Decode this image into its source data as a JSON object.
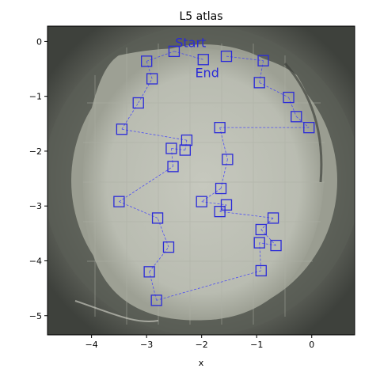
{
  "chart_data": {
    "type": "scatter",
    "title": "L5 atlas",
    "xlabel": "x",
    "ylabel": "",
    "xlim": [
      -4.8,
      0.78
    ],
    "ylim": [
      -5.35,
      0.28
    ],
    "xticks": [
      -4,
      -3,
      -2,
      -1,
      0
    ],
    "yticks": [
      0,
      -1,
      -2,
      -3,
      -4,
      -5
    ],
    "xtick_labels": [
      "−4",
      "−3",
      "−2",
      "−1",
      "0"
    ],
    "ytick_labels": [
      "0",
      "−1",
      "−2",
      "−3",
      "−4",
      "−5"
    ],
    "grid": false,
    "background": "grayscale microscope image of a circular well",
    "marker_color": "#2a2ad8",
    "path_color": "#3a3aff",
    "annotations": [
      {
        "text": "Start",
        "x": -2.2,
        "y": -0.1
      },
      {
        "text": "End",
        "x": -1.9,
        "y": -0.65
      }
    ],
    "path": [
      {
        "x": -1.55,
        "y": -0.27
      },
      {
        "x": -0.88,
        "y": -0.35
      },
      {
        "x": -0.95,
        "y": -0.75
      },
      {
        "x": -0.42,
        "y": -1.02
      },
      {
        "x": -0.28,
        "y": -1.37
      },
      {
        "x": -0.05,
        "y": -1.57
      },
      {
        "x": -1.67,
        "y": -1.57
      },
      {
        "x": -1.53,
        "y": -2.15
      },
      {
        "x": -1.65,
        "y": -2.68
      },
      {
        "x": -2.0,
        "y": -2.92
      },
      {
        "x": -1.55,
        "y": -2.98
      },
      {
        "x": -1.67,
        "y": -3.1
      },
      {
        "x": -0.7,
        "y": -3.22
      },
      {
        "x": -0.92,
        "y": -3.43
      },
      {
        "x": -0.65,
        "y": -3.72
      },
      {
        "x": -0.95,
        "y": -3.67
      },
      {
        "x": -0.92,
        "y": -4.18
      },
      {
        "x": -2.82,
        "y": -4.72
      },
      {
        "x": -2.95,
        "y": -4.2
      },
      {
        "x": -2.6,
        "y": -3.75
      },
      {
        "x": -2.8,
        "y": -3.22
      },
      {
        "x": -3.5,
        "y": -2.92
      },
      {
        "x": -2.52,
        "y": -2.28
      },
      {
        "x": -2.55,
        "y": -1.95
      },
      {
        "x": -2.3,
        "y": -1.98
      },
      {
        "x": -2.27,
        "y": -1.8
      },
      {
        "x": -3.45,
        "y": -1.6
      },
      {
        "x": -3.15,
        "y": -1.12
      },
      {
        "x": -2.9,
        "y": -0.68
      },
      {
        "x": -3.0,
        "y": -0.36
      },
      {
        "x": -2.5,
        "y": -0.18
      },
      {
        "x": -1.97,
        "y": -0.33
      }
    ]
  }
}
